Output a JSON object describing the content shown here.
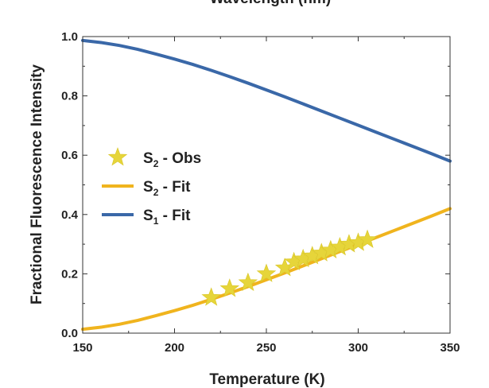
{
  "chart_data": {
    "type": "line",
    "title_partial": "Wavelength (nm)",
    "xlabel": "Temperature (K)",
    "ylabel": "Fractional Fluorescence Intensity",
    "xlim": [
      150,
      350
    ],
    "ylim": [
      0.0,
      1.0
    ],
    "x_ticks": [
      "150",
      "200",
      "250",
      "300",
      "350"
    ],
    "y_ticks": [
      "0.0",
      "0.2",
      "0.4",
      "0.6",
      "0.8",
      "1.0"
    ],
    "grid": false,
    "legend_placement": "center-left",
    "series": [
      {
        "name": "S2 - Obs",
        "legend_main": "S",
        "legend_sub": "2",
        "legend_rest": " - Obs",
        "kind": "scatter",
        "marker": "star",
        "color": "#e6d53a",
        "x": [
          220,
          230,
          240,
          250,
          260,
          265,
          270,
          275,
          280,
          285,
          290,
          295,
          300,
          305
        ],
        "y": [
          0.12,
          0.15,
          0.17,
          0.2,
          0.22,
          0.24,
          0.25,
          0.26,
          0.27,
          0.28,
          0.29,
          0.3,
          0.305,
          0.315
        ]
      },
      {
        "name": "S2 - Fit",
        "legend_main": "S",
        "legend_sub": "2",
        "legend_rest": " - Fit",
        "kind": "line",
        "color": "#f0b41e",
        "x": [
          150,
          160,
          170,
          180,
          190,
          200,
          210,
          220,
          230,
          240,
          250,
          260,
          270,
          280,
          290,
          300,
          310,
          320,
          330,
          340,
          350
        ],
        "y": [
          0.013,
          0.02,
          0.03,
          0.043,
          0.059,
          0.076,
          0.094,
          0.114,
          0.135,
          0.157,
          0.18,
          0.203,
          0.227,
          0.251,
          0.275,
          0.299,
          0.323,
          0.347,
          0.371,
          0.395,
          0.42
        ]
      },
      {
        "name": "S1 - Fit",
        "legend_main": "S",
        "legend_sub": "1",
        "legend_rest": " - Fit",
        "kind": "line",
        "color": "#3a68a8",
        "x": [
          150,
          160,
          170,
          180,
          190,
          200,
          210,
          220,
          230,
          240,
          250,
          260,
          270,
          280,
          290,
          300,
          310,
          320,
          330,
          340,
          350
        ],
        "y": [
          0.987,
          0.98,
          0.97,
          0.957,
          0.941,
          0.924,
          0.906,
          0.886,
          0.865,
          0.843,
          0.82,
          0.797,
          0.773,
          0.749,
          0.725,
          0.701,
          0.677,
          0.653,
          0.629,
          0.605,
          0.58
        ]
      }
    ]
  }
}
